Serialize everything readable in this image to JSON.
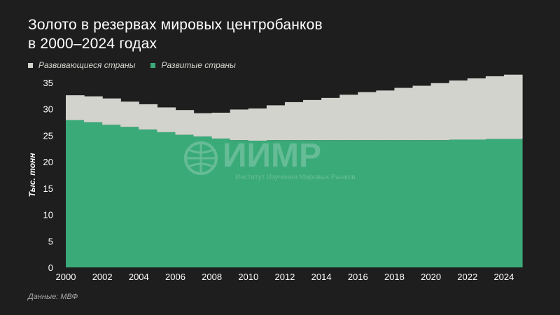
{
  "header": {
    "title_line1": "Золото в резервах мировых центробанков",
    "title_line2": "в 2000–2024 годах"
  },
  "source": "Данные: МВФ",
  "watermark": {
    "name": "ИИМР",
    "subtitle": "Институт Изучения Мировых Рынков"
  },
  "colors": {
    "background": "#1e1e1e",
    "developing": "#d3d3ce",
    "developed": "#3aaa78",
    "axis_text": "#ffffff",
    "grid": "#4a4a4a"
  },
  "chart_data": {
    "type": "area",
    "stacked": true,
    "step": true,
    "title": "Золото в резервах мировых центробанков в 2000–2024 годах",
    "ylabel": "Тыс. тонн",
    "xlabel": "",
    "ylim": [
      0,
      35
    ],
    "yticks": [
      0,
      5,
      10,
      15,
      20,
      25,
      30,
      35
    ],
    "xticks": [
      2000,
      2002,
      2004,
      2006,
      2008,
      2010,
      2012,
      2014,
      2016,
      2018,
      2020,
      2022,
      2024
    ],
    "x": [
      2000,
      2001,
      2002,
      2003,
      2004,
      2005,
      2006,
      2007,
      2008,
      2009,
      2010,
      2011,
      2012,
      2013,
      2014,
      2015,
      2016,
      2017,
      2018,
      2019,
      2020,
      2021,
      2022,
      2023,
      2024
    ],
    "legend_position": "top-left",
    "grid": false,
    "series": [
      {
        "name": "Развитые страны",
        "color": "#3aaa78",
        "values": [
          27.9,
          27.5,
          27.0,
          26.6,
          26.1,
          25.6,
          25.1,
          24.8,
          24.4,
          24.1,
          24.0,
          24.1,
          24.1,
          24.1,
          24.1,
          24.1,
          24.1,
          24.1,
          24.1,
          24.1,
          24.1,
          24.2,
          24.2,
          24.3,
          24.3
        ]
      },
      {
        "name": "Развивающиеся страны",
        "color": "#d3d3ce",
        "values": [
          4.7,
          4.9,
          5.0,
          4.8,
          4.8,
          4.7,
          4.7,
          4.4,
          4.9,
          5.8,
          6.1,
          6.6,
          7.2,
          7.6,
          8.0,
          8.6,
          9.1,
          9.4,
          9.9,
          10.3,
          10.8,
          11.2,
          11.6,
          11.9,
          12.2
        ]
      }
    ],
    "legend": [
      "Развивающиеся страны",
      "Развитые страны"
    ]
  }
}
